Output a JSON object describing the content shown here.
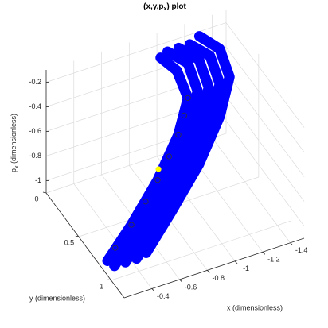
{
  "chart_data": {
    "type": "line3d",
    "title": {
      "text": "(x,y,p",
      "sub": "x",
      "end": ") plot"
    },
    "xlabel": "x (dimensionless)",
    "ylabel": "y (dimensionless)",
    "zlabel": {
      "text": "p",
      "sub": "x",
      "end": " (dimensionless)"
    },
    "xlim": [
      -1.5,
      -0.2
    ],
    "ylim": [
      0,
      1.2
    ],
    "zlim": [
      -1.1,
      -0.1
    ],
    "xticks": [
      -1.4,
      -1.2,
      -1,
      -0.8,
      -0.6,
      -0.4
    ],
    "yticks": [
      0,
      0.5,
      1
    ],
    "zticks": [
      -1,
      -0.8,
      -0.6,
      -0.4,
      -0.2
    ],
    "grid": true,
    "series": [
      {
        "color": "#0000ff",
        "x": [
          -0.35,
          -0.58,
          -0.85,
          -1.07,
          -1.21,
          -1.21,
          -1.11
        ],
        "y": [
          0.9,
          0.8,
          0.65,
          0.5,
          0.35,
          0.2,
          0.1
        ],
        "z": [
          -1.08,
          -0.91,
          -0.73,
          -0.53,
          -0.37,
          -0.25,
          -0.19
        ]
      },
      {
        "color": "#0000ff",
        "x": [
          -0.27,
          -0.5,
          -0.77,
          -0.99,
          -1.13,
          -1.13,
          -1.03
        ],
        "y": [
          0.9,
          0.8,
          0.65,
          0.5,
          0.35,
          0.2,
          0.1
        ],
        "z": [
          -1.08,
          -0.91,
          -0.73,
          -0.53,
          -0.37,
          -0.25,
          -0.19
        ]
      },
      {
        "color": "#0000ff",
        "x": [
          -0.43,
          -0.66,
          -0.93,
          -1.15,
          -1.29,
          -1.29,
          -1.19
        ],
        "y": [
          0.9,
          0.8,
          0.65,
          0.5,
          0.35,
          0.2,
          0.1
        ],
        "z": [
          -1.08,
          -0.91,
          -0.73,
          -0.53,
          -0.37,
          -0.25,
          -0.19
        ]
      },
      {
        "color": "#0000ff",
        "x": [
          -0.22,
          -0.44,
          -0.7,
          -0.92,
          -1.06,
          -1.05,
          -0.98
        ],
        "y": [
          0.9,
          0.8,
          0.65,
          0.5,
          0.35,
          0.2,
          0.1
        ],
        "z": [
          -1.02,
          -0.88,
          -0.72,
          -0.54,
          -0.4,
          -0.28,
          -0.22
        ]
      },
      {
        "color": "#0000ff",
        "x": [
          -0.5,
          -0.73,
          -1,
          -1.22,
          -1.36,
          -1.36,
          -1.26
        ],
        "y": [
          0.9,
          0.8,
          0.65,
          0.5,
          0.35,
          0.2,
          0.1
        ],
        "z": [
          -1.06,
          -0.88,
          -0.7,
          -0.5,
          -0.34,
          -0.22,
          -0.15
        ]
      }
    ],
    "markers": {
      "color": "#333333",
      "x": [
        -0.3,
        -0.44,
        -0.58,
        -0.7,
        -0.82,
        -0.92,
        -1,
        -1.06
      ],
      "y": [
        0.85,
        0.8,
        0.72,
        0.65,
        0.57,
        0.5,
        0.42,
        0.35
      ],
      "z": [
        -0.98,
        -0.88,
        -0.8,
        -0.72,
        -0.63,
        -0.54,
        -0.47,
        -0.4
      ]
    },
    "highlight": {
      "color": "#ffff00",
      "x": [
        -0.72
      ],
      "y": [
        0.62
      ],
      "z": [
        -0.66
      ]
    }
  }
}
